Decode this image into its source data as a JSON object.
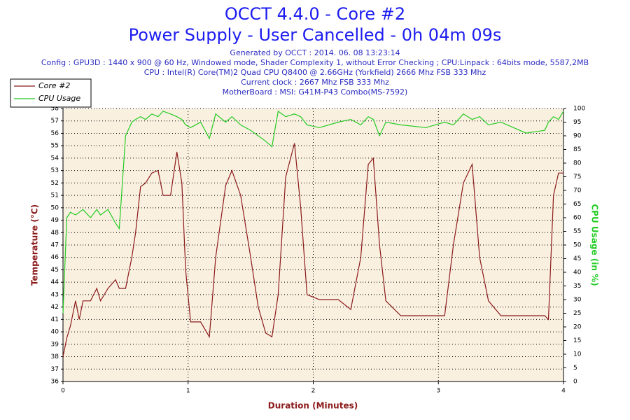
{
  "chart_data": {
    "type": "line",
    "title": "OCCT 4.4.0 - Core #2",
    "subtitle": "Power Supply - User Cancelled - 0h 04m 09s",
    "annotations": [
      "Generated by OCCT : 2014. 06. 08 13:23:14",
      "Config : GPU3D : 1440 x 900 @ 60 Hz, Windowed mode, Shader Complexity 1, without Error Checking ; CPU:Linpack : 64bits mode, 5587,2MB",
      "CPU : Intel(R) Core(TM)2 Quad CPU Q8400 @ 2.66GHz (Yorkfield) 2666 Mhz FSB 333 Mhz",
      "Current clock : 2667 Mhz FSB 333 Mhz",
      "MotherBoard : MSI: G41M-P43 Combo(MS-7592)"
    ],
    "x_label": "Duration (Minutes)",
    "y_label": "Temperature (°C)",
    "y2_label": "CPU Usage (in %)",
    "x": [
      0,
      0.03,
      0.06,
      0.1,
      0.13,
      0.16,
      0.22,
      0.27,
      0.3,
      0.36,
      0.42,
      0.45,
      0.5,
      0.55,
      0.58,
      0.62,
      0.66,
      0.71,
      0.76,
      0.8,
      0.86,
      0.91,
      0.95,
      0.98,
      1.02,
      1.1,
      1.17,
      1.22,
      1.3,
      1.35,
      1.42,
      1.5,
      1.56,
      1.62,
      1.67,
      1.72,
      1.78,
      1.85,
      1.9,
      1.95,
      2.05,
      2.2,
      2.3,
      2.38,
      2.44,
      2.48,
      2.53,
      2.58,
      2.7,
      2.9,
      3.05,
      3.12,
      3.2,
      3.27,
      3.33,
      3.4,
      3.5,
      3.7,
      3.85,
      3.88,
      3.92,
      3.96,
      4.0
    ],
    "series": [
      {
        "name": "Core #2",
        "color": "#8b1a1a",
        "axis": "y",
        "values": [
          38,
          39.5,
          40.5,
          42.5,
          41,
          42.5,
          42.5,
          43.5,
          42.5,
          43.5,
          44.2,
          43.5,
          43.5,
          46,
          48,
          51.7,
          52,
          52.8,
          53,
          51,
          51,
          54.5,
          52,
          45,
          40.8,
          40.8,
          39.6,
          46,
          51.8,
          53,
          51,
          46,
          42,
          39.9,
          39.6,
          43,
          52.5,
          55.2,
          50,
          43,
          42.6,
          42.6,
          41.8,
          46,
          53.5,
          54,
          47,
          42.5,
          41.3,
          41.3,
          41.3,
          47,
          52,
          53.5,
          46,
          42.5,
          41.3,
          41.3,
          41.3,
          41,
          51,
          52.8,
          52.8
        ]
      },
      {
        "name": "CPU Usage",
        "color": "#22cc22",
        "axis": "y2",
        "values": [
          25,
          60,
          62,
          61,
          62,
          63,
          60,
          63,
          61,
          63,
          58,
          56,
          90,
          95,
          96,
          97,
          96,
          98,
          97,
          99,
          98,
          97,
          96,
          94,
          93,
          95,
          89,
          98,
          95,
          97,
          94,
          92,
          90,
          88,
          86,
          99,
          97,
          98,
          97,
          94,
          93,
          95,
          96,
          94,
          97,
          96,
          90,
          95,
          94,
          93,
          95,
          94,
          98,
          96,
          97,
          94,
          95,
          91,
          92,
          95,
          97,
          96,
          99
        ]
      }
    ],
    "xlim": [
      0,
      4
    ],
    "xticks": [
      0,
      1,
      2,
      3,
      4
    ],
    "ylim": [
      36,
      58
    ],
    "yticks": [
      36,
      37,
      38,
      39,
      40,
      41,
      42,
      43,
      44,
      45,
      46,
      47,
      48,
      49,
      50,
      51,
      52,
      53,
      54,
      55,
      56,
      57,
      58
    ],
    "y2lim": [
      0,
      100
    ],
    "y2ticks": [
      0,
      5,
      10,
      15,
      20,
      25,
      30,
      35,
      40,
      45,
      50,
      55,
      60,
      65,
      70,
      75,
      80,
      85,
      90,
      95,
      100
    ],
    "grid": true,
    "legend": "top-left"
  }
}
